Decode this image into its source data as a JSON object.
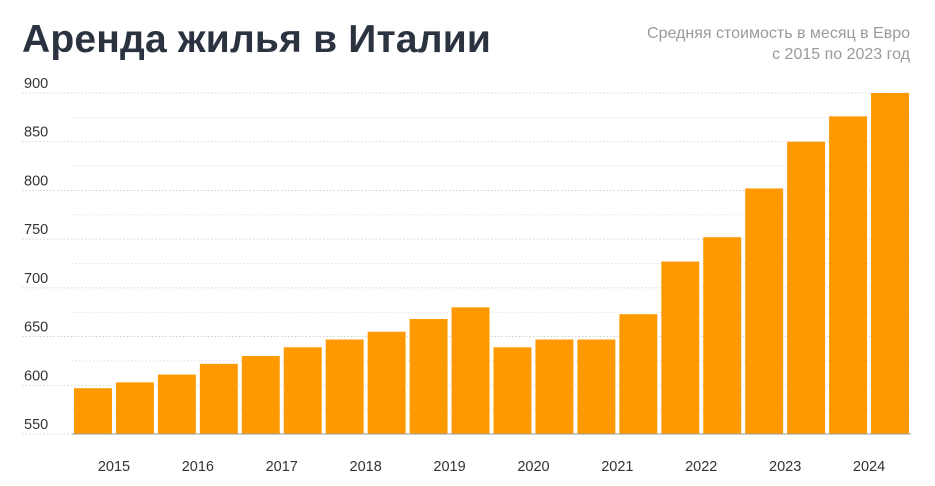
{
  "header": {
    "title": "Аренда жилья в Италии",
    "subtitle_line1": "Средняя стоимость в месяц в Евро",
    "subtitle_line2": "с 2015 по 2023 год"
  },
  "chart_data": {
    "type": "bar",
    "title": "Аренда жилья в Италии",
    "subtitle": "Средняя стоимость в месяц в Евро с 2015 по 2023 год",
    "xlabel": "",
    "ylabel": "",
    "ylim": [
      550,
      900
    ],
    "yticks": [
      550,
      600,
      650,
      700,
      750,
      800,
      850,
      900
    ],
    "xtick_labels": [
      "2015",
      "2016",
      "2017",
      "2018",
      "2019",
      "2020",
      "2021",
      "2022",
      "2023",
      "2024"
    ],
    "values": [
      597,
      603,
      611,
      622,
      630,
      639,
      647,
      655,
      668,
      680,
      639,
      647,
      647,
      673,
      727,
      752,
      802,
      850,
      876,
      900
    ],
    "bar_color": "#ff9900",
    "grid": "horizontal dotted",
    "legend": "none"
  }
}
